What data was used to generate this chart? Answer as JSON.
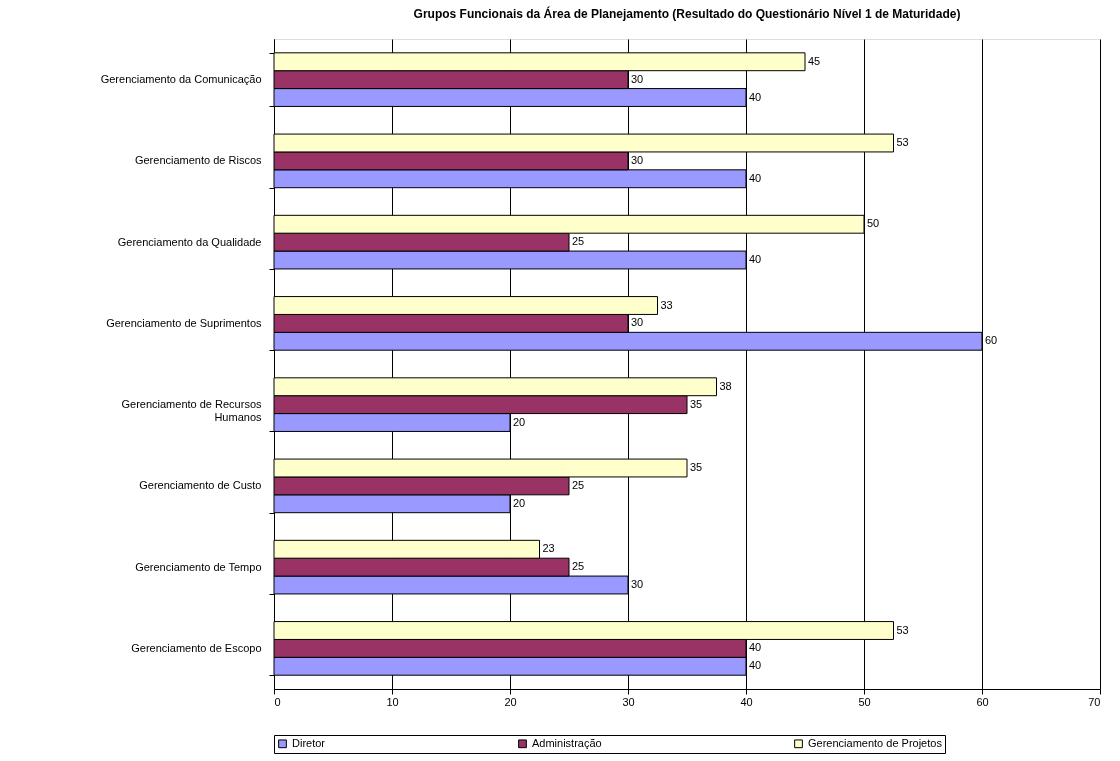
{
  "chart_data": {
    "type": "bar",
    "orientation": "horizontal",
    "title": "Grupos Funcionais da Área de Planejamento (Resultado do Questionário Nível 1 de Maturidade)",
    "categories": [
      "Gerenciamento da Comunicação",
      "Gerenciamento de Riscos",
      "Gerenciamento da Qualidade",
      "Gerenciamento de Suprimentos",
      "Gerenciamento de Recursos Humanos",
      "Gerenciamento de Custo",
      "Gerenciamento de Tempo",
      "Gerenciamento de Escopo"
    ],
    "series": [
      {
        "name": "Diretor",
        "color": "#9999ff",
        "values": [
          40,
          40,
          40,
          60,
          20,
          20,
          30,
          40
        ],
        "value_labels": [
          "40",
          "40",
          "40",
          "60",
          "20",
          "20",
          "30",
          "40"
        ]
      },
      {
        "name": "Administração",
        "color": "#993366",
        "values": [
          30,
          30,
          25,
          30,
          35,
          25,
          25,
          40
        ],
        "value_labels": [
          "30",
          "30",
          "25",
          "30",
          "35",
          "25",
          "25",
          "40"
        ]
      },
      {
        "name": "Gerenciamento de Projetos",
        "color": "#ffffcc",
        "values": [
          45,
          52.5,
          50,
          32.5,
          37.5,
          35,
          22.5,
          52.5
        ],
        "value_labels": [
          "45",
          "53",
          "50",
          "33",
          "38",
          "35",
          "23",
          "53"
        ]
      }
    ],
    "xlim": [
      0,
      70
    ],
    "xticks": [
      0,
      10,
      20,
      30,
      40,
      50,
      60,
      70
    ],
    "grid": "x",
    "legend": "bottom"
  }
}
